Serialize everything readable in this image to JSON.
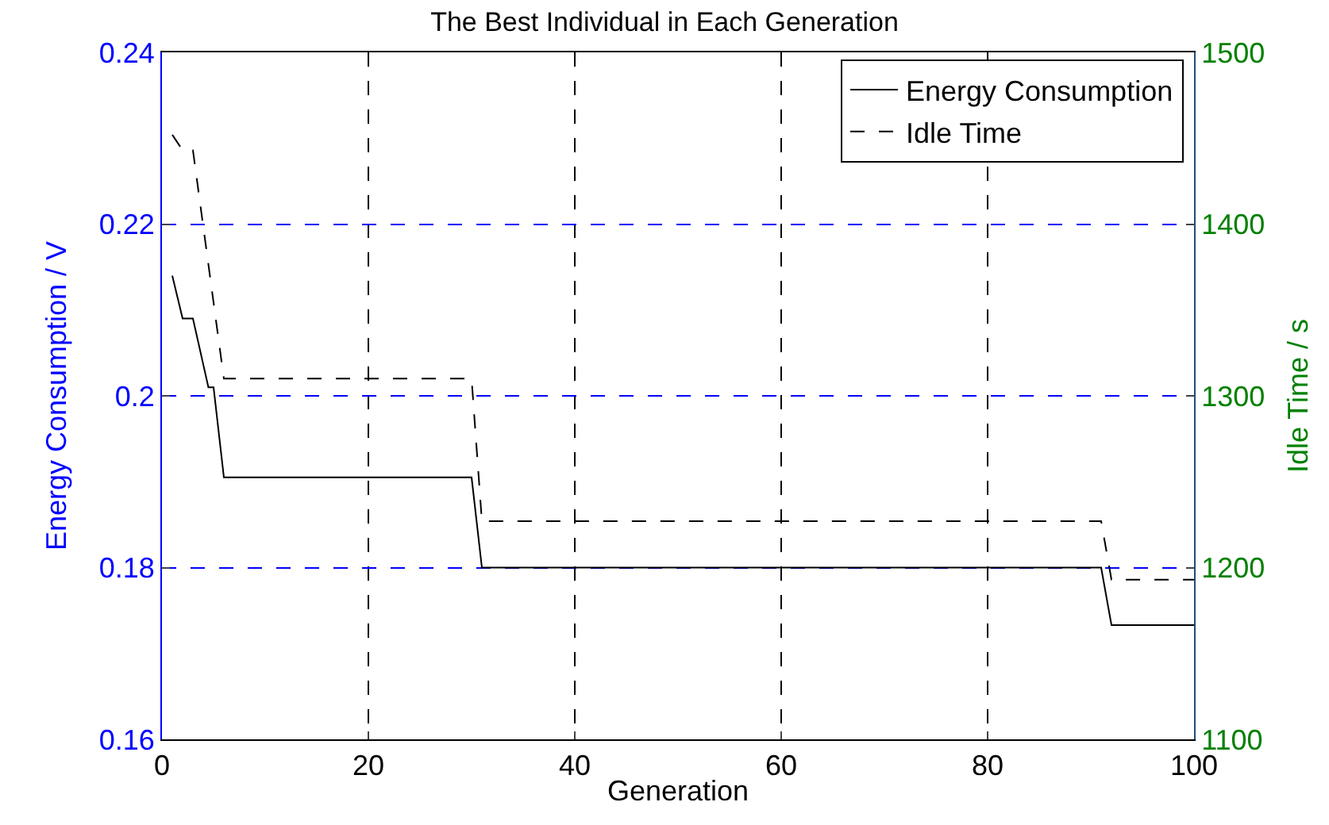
{
  "chart_data": {
    "type": "line",
    "title": "The Best Individual in Each Generation",
    "xlabel": "Generation",
    "ylabel": "Energy Consumption / V",
    "y2label": "Idle Time / s",
    "xlim": [
      0,
      100
    ],
    "xticks": [
      0,
      20,
      40,
      60,
      80,
      100
    ],
    "ylim": [
      0.16,
      0.24
    ],
    "yticks": [
      0.16,
      0.18,
      0.2,
      0.22,
      0.24
    ],
    "y2lim": [
      1100,
      1500
    ],
    "y2ticks": [
      1100,
      1200,
      1300,
      1400,
      1500
    ],
    "grid": true,
    "legend": "top right",
    "series": [
      {
        "name": "Energy Consumption",
        "color": "#000000",
        "line_style": "solid",
        "x": [
          1,
          2,
          3,
          4.5,
          5,
          6,
          30,
          31,
          91,
          92,
          100
        ],
        "values": [
          0.214,
          0.209,
          0.209,
          0.201,
          0.201,
          0.1905,
          0.1905,
          0.18,
          0.18,
          0.1733,
          0.1733
        ]
      },
      {
        "name": "Idle Time",
        "color": "#000000",
        "line_style": "dashed",
        "axis": "y2",
        "x": [
          1,
          2,
          3,
          6,
          30,
          31,
          91,
          92,
          100
        ],
        "values": [
          1452,
          1443,
          1443,
          1310,
          1310,
          1227,
          1227,
          1193,
          1193
        ]
      }
    ]
  }
}
